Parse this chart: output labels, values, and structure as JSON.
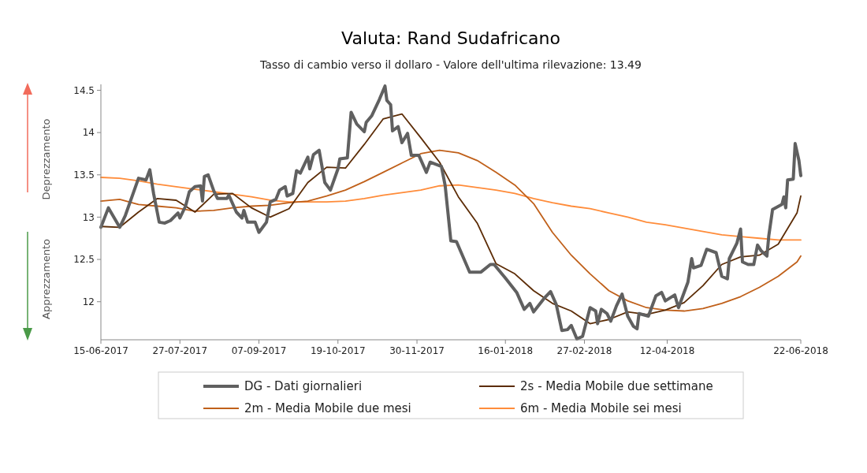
{
  "chart_data": {
    "type": "line",
    "title": "Valuta: Rand Sudafricano",
    "subtitle": "Tasso di cambio verso il dollaro - Valore dell'ultima rilevazione: 13.49",
    "annotations": [
      "Deprezzamento",
      "Apprezzamento"
    ],
    "xlim": [
      "2017-06-15",
      "2018-06-22"
    ],
    "xticks": [
      {
        "value": "2017-06-15",
        "label": "15-06-2017"
      },
      {
        "value": "2017-07-27",
        "label": "27-07-2017"
      },
      {
        "value": "2017-09-07",
        "label": "07-09-2017"
      },
      {
        "value": "2017-10-19",
        "label": "19-10-2017"
      },
      {
        "value": "2017-11-30",
        "label": "30-11-2017"
      },
      {
        "value": "2018-01-16",
        "label": "16-01-2018"
      },
      {
        "value": "2018-02-27",
        "label": "27-02-2018"
      },
      {
        "value": "2018-04-12",
        "label": "12-04-2018"
      },
      {
        "value": "2018-06-22",
        "label": "22-06-2018"
      }
    ],
    "ylim": [
      11.55,
      14.57
    ],
    "yticks": [
      12,
      12.5,
      13,
      13.5,
      14,
      14.5
    ],
    "grid": false,
    "legend": "bottom",
    "series": [
      {
        "name": "DG - Dati giornalieri",
        "color": "#606060",
        "x": [
          "2017-06-15",
          "2017-06-19",
          "2017-06-25",
          "2017-06-28",
          "2017-07-05",
          "2017-07-09",
          "2017-07-11",
          "2017-07-13",
          "2017-07-16",
          "2017-07-19",
          "2017-07-22",
          "2017-07-26",
          "2017-07-27",
          "2017-07-30",
          "2017-08-01",
          "2017-08-04",
          "2017-08-07",
          "2017-08-08",
          "2017-08-09",
          "2017-08-11",
          "2017-08-14",
          "2017-08-16",
          "2017-08-21",
          "2017-08-22",
          "2017-08-26",
          "2017-08-29",
          "2017-08-30",
          "2017-09-01",
          "2017-09-05",
          "2017-09-07",
          "2017-09-11",
          "2017-09-13",
          "2017-09-16",
          "2017-09-18",
          "2017-09-21",
          "2017-09-22",
          "2017-09-25",
          "2017-09-27",
          "2017-09-29",
          "2017-10-03",
          "2017-10-04",
          "2017-10-06",
          "2017-10-09",
          "2017-10-12",
          "2017-10-15",
          "2017-10-19",
          "2017-10-20",
          "2017-10-24",
          "2017-10-26",
          "2017-10-29",
          "2017-11-02",
          "2017-11-03",
          "2017-11-06",
          "2017-11-10",
          "2017-11-13",
          "2017-11-14",
          "2017-11-16",
          "2017-11-17",
          "2017-11-20",
          "2017-11-22",
          "2017-11-25",
          "2017-11-27",
          "2017-12-01",
          "2017-12-05",
          "2017-12-07",
          "2017-12-13",
          "2017-12-15",
          "2017-12-18",
          "2017-12-21",
          "2017-12-28",
          "2018-01-03",
          "2018-01-08",
          "2018-01-10",
          "2018-01-16",
          "2018-01-22",
          "2018-01-26",
          "2018-01-29",
          "2018-01-31",
          "2018-02-06",
          "2018-02-09",
          "2018-02-12",
          "2018-02-15",
          "2018-02-18",
          "2018-02-20",
          "2018-02-23",
          "2018-02-26",
          "2018-03-02",
          "2018-03-05",
          "2018-03-06",
          "2018-03-08",
          "2018-03-11",
          "2018-03-13",
          "2018-03-16",
          "2018-03-19",
          "2018-03-22",
          "2018-03-25",
          "2018-03-27",
          "2018-03-28",
          "2018-04-02",
          "2018-04-06",
          "2018-04-09",
          "2018-04-11",
          "2018-04-16",
          "2018-04-18",
          "2018-04-23",
          "2018-04-25",
          "2018-04-26",
          "2018-04-30",
          "2018-05-03",
          "2018-05-08",
          "2018-05-11",
          "2018-05-14",
          "2018-05-15",
          "2018-05-19",
          "2018-05-21",
          "2018-05-22",
          "2018-05-25",
          "2018-05-28",
          "2018-05-30",
          "2018-06-01",
          "2018-06-04",
          "2018-06-05",
          "2018-06-07",
          "2018-06-12",
          "2018-06-13",
          "2018-06-14",
          "2018-06-15",
          "2018-06-18",
          "2018-06-19",
          "2018-06-21",
          "2018-06-22"
        ],
        "values": [
          12.88,
          13.11,
          12.88,
          13.02,
          13.46,
          13.44,
          13.56,
          13.28,
          12.94,
          12.93,
          12.96,
          13.05,
          12.99,
          13.13,
          13.3,
          13.36,
          13.37,
          13.19,
          13.48,
          13.5,
          13.31,
          13.22,
          13.22,
          13.26,
          13.06,
          12.99,
          13.08,
          12.94,
          12.94,
          12.82,
          12.94,
          13.18,
          13.21,
          13.32,
          13.36,
          13.25,
          13.28,
          13.55,
          13.52,
          13.71,
          13.57,
          13.74,
          13.79,
          13.41,
          13.32,
          13.57,
          13.69,
          13.7,
          14.24,
          14.1,
          14.01,
          14.12,
          14.2,
          14.39,
          14.55,
          14.38,
          14.33,
          14.02,
          14.07,
          13.88,
          13.99,
          13.73,
          13.73,
          13.53,
          13.65,
          13.6,
          13.37,
          12.72,
          12.71,
          12.35,
          12.35,
          12.44,
          12.44,
          12.28,
          12.11,
          11.91,
          11.98,
          11.88,
          12.05,
          12.12,
          11.97,
          11.66,
          11.67,
          11.72,
          11.56,
          11.59,
          11.93,
          11.89,
          11.74,
          11.91,
          11.86,
          11.77,
          11.95,
          12.09,
          11.83,
          11.71,
          11.68,
          11.86,
          11.83,
          12.07,
          12.11,
          12.01,
          12.08,
          11.93,
          12.23,
          12.51,
          12.4,
          12.43,
          12.62,
          12.58,
          12.3,
          12.27,
          12.51,
          12.69,
          12.86,
          12.47,
          12.44,
          12.44,
          12.67,
          12.6,
          12.54,
          12.78,
          13.09,
          13.15,
          13.24,
          13.11,
          13.44,
          13.45,
          13.87,
          13.67,
          13.49
        ]
      },
      {
        "name": "2s - Media Mobile due settimane",
        "color": "#5c2c06",
        "x": [
          "2017-06-15",
          "2017-06-25",
          "2017-07-05",
          "2017-07-15",
          "2017-07-25",
          "2017-08-04",
          "2017-08-14",
          "2017-08-24",
          "2017-09-03",
          "2017-09-13",
          "2017-09-23",
          "2017-10-03",
          "2017-10-13",
          "2017-10-23",
          "2017-11-02",
          "2017-11-12",
          "2017-11-22",
          "2017-12-02",
          "2017-12-12",
          "2017-12-22",
          "2018-01-01",
          "2018-01-11",
          "2018-01-21",
          "2018-01-31",
          "2018-02-10",
          "2018-02-20",
          "2018-03-02",
          "2018-03-12",
          "2018-03-22",
          "2018-04-01",
          "2018-04-11",
          "2018-04-21",
          "2018-05-01",
          "2018-05-11",
          "2018-05-21",
          "2018-05-31",
          "2018-06-10",
          "2018-06-20",
          "2018-06-22"
        ],
        "values": [
          12.89,
          12.88,
          13.06,
          13.22,
          13.2,
          13.06,
          13.27,
          13.28,
          13.11,
          13.0,
          13.1,
          13.41,
          13.59,
          13.58,
          13.86,
          14.16,
          14.22,
          13.94,
          13.65,
          13.24,
          12.93,
          12.45,
          12.33,
          12.13,
          11.98,
          11.89,
          11.74,
          11.79,
          11.88,
          11.85,
          11.9,
          11.99,
          12.19,
          12.44,
          12.53,
          12.55,
          12.68,
          13.05,
          13.25
        ]
      },
      {
        "name": "2m - Media Mobile due mesi",
        "color": "#c0601a",
        "x": [
          "2017-06-15",
          "2017-06-25",
          "2017-07-05",
          "2017-07-15",
          "2017-07-25",
          "2017-08-04",
          "2017-08-14",
          "2017-08-24",
          "2017-09-03",
          "2017-09-13",
          "2017-09-23",
          "2017-10-03",
          "2017-10-13",
          "2017-10-23",
          "2017-11-02",
          "2017-11-12",
          "2017-11-22",
          "2017-12-02",
          "2017-12-12",
          "2017-12-22",
          "2018-01-01",
          "2018-01-11",
          "2018-01-21",
          "2018-01-31",
          "2018-02-10",
          "2018-02-20",
          "2018-03-02",
          "2018-03-12",
          "2018-03-22",
          "2018-04-01",
          "2018-04-11",
          "2018-04-21",
          "2018-05-01",
          "2018-05-11",
          "2018-05-21",
          "2018-05-31",
          "2018-06-10",
          "2018-06-20",
          "2018-06-22"
        ],
        "values": [
          13.19,
          13.21,
          13.15,
          13.13,
          13.11,
          13.07,
          13.08,
          13.11,
          13.13,
          13.14,
          13.17,
          13.19,
          13.25,
          13.32,
          13.42,
          13.53,
          13.64,
          13.75,
          13.79,
          13.76,
          13.67,
          13.53,
          13.38,
          13.16,
          12.82,
          12.55,
          12.33,
          12.13,
          12.01,
          11.93,
          11.9,
          11.89,
          11.92,
          11.98,
          12.06,
          12.17,
          12.3,
          12.47,
          12.54
        ]
      },
      {
        "name": "6m - Media Mobile sei mesi",
        "color": "#ff8c3a",
        "x": [
          "2017-06-15",
          "2017-06-25",
          "2017-07-05",
          "2017-07-15",
          "2017-07-25",
          "2017-08-04",
          "2017-08-14",
          "2017-08-24",
          "2017-09-03",
          "2017-09-13",
          "2017-09-23",
          "2017-10-03",
          "2017-10-13",
          "2017-10-23",
          "2017-11-02",
          "2017-11-12",
          "2017-11-22",
          "2017-12-02",
          "2017-12-12",
          "2017-12-22",
          "2018-01-01",
          "2018-01-11",
          "2018-01-21",
          "2018-01-31",
          "2018-02-10",
          "2018-02-20",
          "2018-03-02",
          "2018-03-12",
          "2018-03-22",
          "2018-04-01",
          "2018-04-11",
          "2018-04-21",
          "2018-05-01",
          "2018-05-11",
          "2018-05-21",
          "2018-05-31",
          "2018-06-10",
          "2018-06-20",
          "2018-06-22"
        ],
        "values": [
          13.47,
          13.46,
          13.43,
          13.39,
          13.36,
          13.33,
          13.3,
          13.27,
          13.24,
          13.2,
          13.18,
          13.18,
          13.18,
          13.19,
          13.22,
          13.26,
          13.29,
          13.32,
          13.37,
          13.38,
          13.35,
          13.32,
          13.28,
          13.22,
          13.17,
          13.13,
          13.1,
          13.05,
          13.0,
          12.94,
          12.91,
          12.87,
          12.83,
          12.79,
          12.77,
          12.75,
          12.73,
          12.73,
          12.73
        ]
      }
    ]
  }
}
